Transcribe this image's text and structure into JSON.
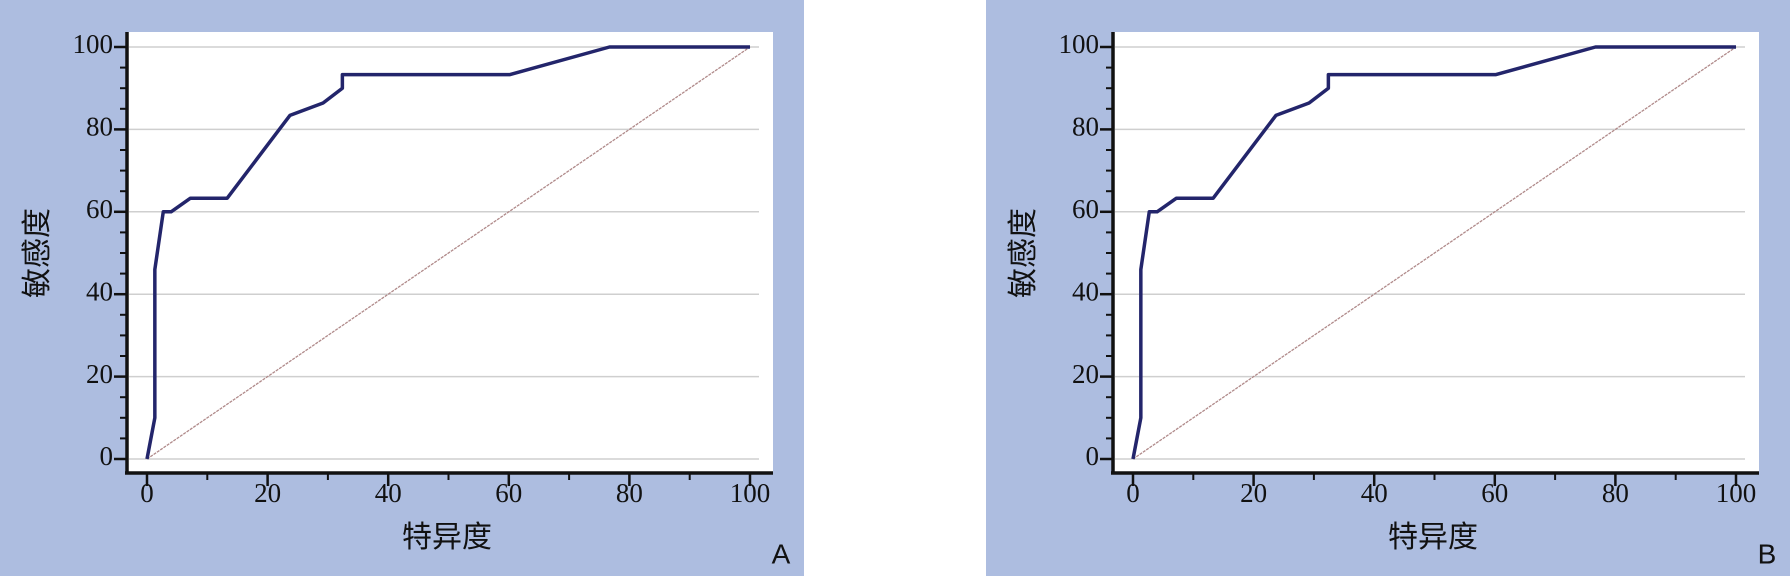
{
  "chart_data": [
    {
      "type": "line",
      "panel_label": "A",
      "xlabel": "特异度",
      "ylabel": "敏感度",
      "x": [
        0,
        1.3,
        1.3,
        2.7,
        4,
        7.2,
        13.3,
        23.7,
        29.2,
        32.4,
        32.4,
        60.2,
        76.7,
        100
      ],
      "series": [
        {
          "color": "#23256b",
          "values": [
            0,
            10,
            46,
            60,
            60,
            63.3,
            63.3,
            83.4,
            86.4,
            90,
            93.3,
            93.3,
            100,
            100
          ]
        }
      ],
      "xlim": [
        0,
        100
      ],
      "ylim": [
        0,
        100
      ],
      "xticks": [
        0,
        20,
        40,
        60,
        80,
        100
      ],
      "yticks": [
        0,
        20,
        40,
        60,
        80,
        100
      ],
      "xminor_ticks": [
        10,
        30,
        50,
        70,
        90
      ],
      "yminor_ticks": [
        5,
        10,
        15,
        25,
        30,
        35,
        45,
        50,
        55,
        65,
        70,
        75,
        85,
        90,
        95
      ],
      "grid": true,
      "reference_line": true
    },
    {
      "type": "line",
      "panel_label": "B",
      "xlabel": "特异度",
      "ylabel": "敏感度",
      "x": [
        0,
        1.3,
        1.3,
        2.7,
        4,
        7.2,
        13.3,
        23.7,
        29.2,
        32.4,
        32.4,
        60.2,
        76.7,
        100
      ],
      "series": [
        {
          "color": "#23256b",
          "values": [
            0,
            10,
            46,
            60,
            60,
            63.3,
            63.3,
            83.4,
            86.4,
            90,
            93.3,
            93.3,
            100,
            100
          ]
        }
      ],
      "xlim": [
        0,
        100
      ],
      "ylim": [
        0,
        100
      ],
      "xticks": [
        0,
        20,
        40,
        60,
        80,
        100
      ],
      "yticks": [
        0,
        20,
        40,
        60,
        80,
        100
      ],
      "xminor_ticks": [
        10,
        30,
        50,
        70,
        90
      ],
      "yminor_ticks": [
        5,
        10,
        15,
        25,
        30,
        35,
        45,
        50,
        55,
        65,
        70,
        75,
        85,
        90,
        95
      ],
      "grid": true,
      "reference_line": true
    }
  ]
}
